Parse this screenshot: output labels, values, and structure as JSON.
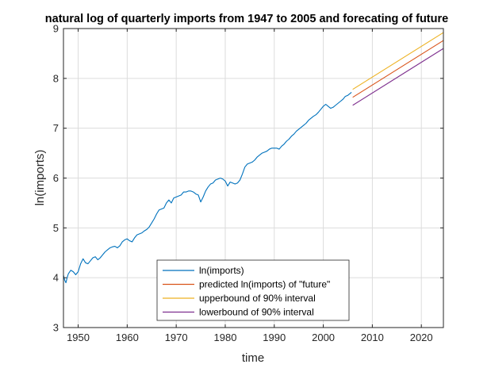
{
  "chart_data": {
    "type": "line",
    "title": "natural log of quarterly imports from 1947 to 2005 and forecating of future",
    "xlabel": "time",
    "ylabel": "ln(imports)",
    "xlim": [
      1947,
      2024.5
    ],
    "ylim": [
      3,
      9
    ],
    "xticks": [
      1950,
      1960,
      1970,
      1980,
      1990,
      2000,
      2010,
      2020
    ],
    "yticks": [
      3,
      4,
      5,
      6,
      7,
      8,
      9
    ],
    "grid": true,
    "legend_position": "bottom-center",
    "series": [
      {
        "name": "ln(imports)",
        "color": "#0072BD",
        "points": [
          [
            1947.0,
            4.05
          ],
          [
            1947.25,
            3.95
          ],
          [
            1947.5,
            3.9
          ],
          [
            1947.75,
            4.0
          ],
          [
            1948.0,
            4.08
          ],
          [
            1948.5,
            4.15
          ],
          [
            1949.0,
            4.12
          ],
          [
            1949.5,
            4.06
          ],
          [
            1950.0,
            4.12
          ],
          [
            1950.5,
            4.28
          ],
          [
            1951.0,
            4.38
          ],
          [
            1951.5,
            4.3
          ],
          [
            1952.0,
            4.28
          ],
          [
            1952.5,
            4.34
          ],
          [
            1953.0,
            4.4
          ],
          [
            1953.5,
            4.42
          ],
          [
            1954.0,
            4.36
          ],
          [
            1954.5,
            4.4
          ],
          [
            1955.0,
            4.46
          ],
          [
            1955.5,
            4.52
          ],
          [
            1956.0,
            4.56
          ],
          [
            1956.5,
            4.6
          ],
          [
            1957.0,
            4.62
          ],
          [
            1957.5,
            4.63
          ],
          [
            1958.0,
            4.6
          ],
          [
            1958.5,
            4.64
          ],
          [
            1959.0,
            4.72
          ],
          [
            1959.5,
            4.76
          ],
          [
            1960.0,
            4.78
          ],
          [
            1960.5,
            4.74
          ],
          [
            1961.0,
            4.72
          ],
          [
            1961.5,
            4.8
          ],
          [
            1962.0,
            4.86
          ],
          [
            1962.5,
            4.88
          ],
          [
            1963.0,
            4.9
          ],
          [
            1963.5,
            4.94
          ],
          [
            1964.0,
            4.97
          ],
          [
            1964.5,
            5.02
          ],
          [
            1965.0,
            5.1
          ],
          [
            1965.5,
            5.18
          ],
          [
            1966.0,
            5.28
          ],
          [
            1966.5,
            5.36
          ],
          [
            1967.0,
            5.38
          ],
          [
            1967.5,
            5.4
          ],
          [
            1968.0,
            5.5
          ],
          [
            1968.5,
            5.56
          ],
          [
            1969.0,
            5.5
          ],
          [
            1969.5,
            5.6
          ],
          [
            1970.0,
            5.62
          ],
          [
            1970.5,
            5.64
          ],
          [
            1971.0,
            5.66
          ],
          [
            1971.5,
            5.72
          ],
          [
            1972.0,
            5.72
          ],
          [
            1972.5,
            5.74
          ],
          [
            1973.0,
            5.74
          ],
          [
            1973.5,
            5.72
          ],
          [
            1974.0,
            5.68
          ],
          [
            1974.5,
            5.66
          ],
          [
            1975.0,
            5.52
          ],
          [
            1975.5,
            5.62
          ],
          [
            1976.0,
            5.74
          ],
          [
            1976.5,
            5.82
          ],
          [
            1977.0,
            5.88
          ],
          [
            1977.5,
            5.9
          ],
          [
            1978.0,
            5.96
          ],
          [
            1978.5,
            5.98
          ],
          [
            1979.0,
            6.0
          ],
          [
            1979.5,
            5.98
          ],
          [
            1980.0,
            5.94
          ],
          [
            1980.5,
            5.84
          ],
          [
            1981.0,
            5.92
          ],
          [
            1981.5,
            5.9
          ],
          [
            1982.0,
            5.88
          ],
          [
            1982.5,
            5.9
          ],
          [
            1983.0,
            5.96
          ],
          [
            1983.5,
            6.08
          ],
          [
            1984.0,
            6.22
          ],
          [
            1984.5,
            6.28
          ],
          [
            1985.0,
            6.3
          ],
          [
            1985.5,
            6.32
          ],
          [
            1986.0,
            6.36
          ],
          [
            1986.5,
            6.42
          ],
          [
            1987.0,
            6.46
          ],
          [
            1987.5,
            6.5
          ],
          [
            1988.0,
            6.52
          ],
          [
            1988.5,
            6.54
          ],
          [
            1989.0,
            6.58
          ],
          [
            1989.5,
            6.6
          ],
          [
            1990.0,
            6.6
          ],
          [
            1990.5,
            6.6
          ],
          [
            1991.0,
            6.58
          ],
          [
            1991.5,
            6.64
          ],
          [
            1992.0,
            6.68
          ],
          [
            1992.5,
            6.74
          ],
          [
            1993.0,
            6.78
          ],
          [
            1993.5,
            6.84
          ],
          [
            1994.0,
            6.88
          ],
          [
            1994.5,
            6.94
          ],
          [
            1995.0,
            6.98
          ],
          [
            1995.5,
            7.02
          ],
          [
            1996.0,
            7.06
          ],
          [
            1996.5,
            7.1
          ],
          [
            1997.0,
            7.16
          ],
          [
            1997.5,
            7.2
          ],
          [
            1998.0,
            7.24
          ],
          [
            1998.5,
            7.27
          ],
          [
            1999.0,
            7.32
          ],
          [
            1999.5,
            7.38
          ],
          [
            2000.0,
            7.44
          ],
          [
            2000.5,
            7.48
          ],
          [
            2001.0,
            7.44
          ],
          [
            2001.5,
            7.4
          ],
          [
            2002.0,
            7.42
          ],
          [
            2002.5,
            7.46
          ],
          [
            2003.0,
            7.5
          ],
          [
            2003.5,
            7.54
          ],
          [
            2004.0,
            7.58
          ],
          [
            2004.5,
            7.64
          ],
          [
            2005.0,
            7.66
          ],
          [
            2005.75,
            7.72
          ]
        ]
      },
      {
        "name": "predicted ln(imports) of \"future\"",
        "color": "#D95319",
        "points": [
          [
            2006.0,
            7.62
          ],
          [
            2024.5,
            8.76
          ]
        ]
      },
      {
        "name": "upperbound of 90% interval",
        "color": "#EDB120",
        "points": [
          [
            2006.0,
            7.78
          ],
          [
            2024.5,
            8.92
          ]
        ]
      },
      {
        "name": "lowerbound of 90% interval",
        "color": "#7E2F8E",
        "points": [
          [
            2006.0,
            7.46
          ],
          [
            2024.5,
            8.6
          ]
        ]
      }
    ]
  }
}
